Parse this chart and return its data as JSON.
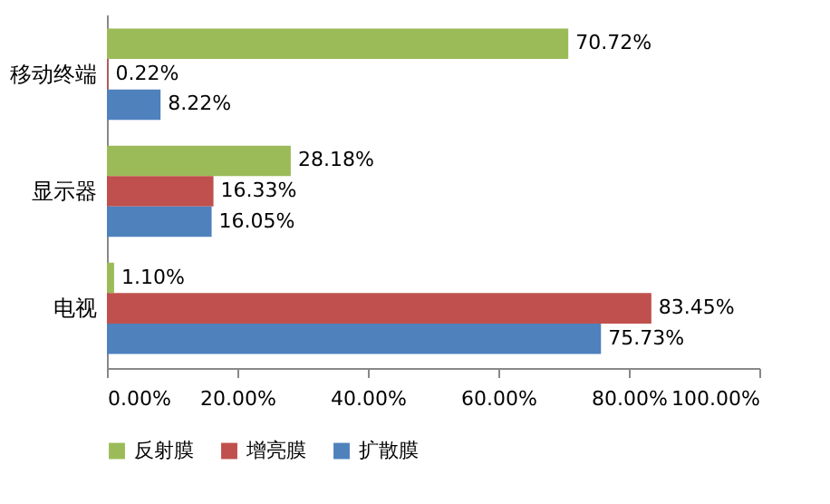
{
  "chart_data": {
    "type": "bar",
    "orientation": "horizontal",
    "categories": [
      "移动终端",
      "显示器",
      "电视"
    ],
    "series": [
      {
        "name": "反射膜",
        "color": "#9bbb59",
        "values": [
          70.72,
          28.18,
          1.1
        ],
        "value_labels": [
          "70.72%",
          "28.18%",
          "1.10%"
        ]
      },
      {
        "name": "增亮膜",
        "color": "#c0504d",
        "values": [
          0.22,
          16.33,
          83.45
        ],
        "value_labels": [
          "0.22%",
          "16.33%",
          "83.45%"
        ]
      },
      {
        "name": "扩散膜",
        "color": "#4f81bd",
        "values": [
          8.22,
          16.05,
          75.73
        ],
        "value_labels": [
          "8.22%",
          "16.05%",
          "75.73%"
        ]
      }
    ],
    "xlim": [
      0,
      100
    ],
    "xticks": [
      {
        "value": 0,
        "label": "0.00%"
      },
      {
        "value": 20,
        "label": "20.00%"
      },
      {
        "value": 40,
        "label": "40.00%"
      },
      {
        "value": 60,
        "label": "60.00%"
      },
      {
        "value": 80,
        "label": "80.00%"
      },
      {
        "value": 100,
        "label": "100.00%"
      }
    ],
    "grid": false,
    "legend": "bottom"
  }
}
